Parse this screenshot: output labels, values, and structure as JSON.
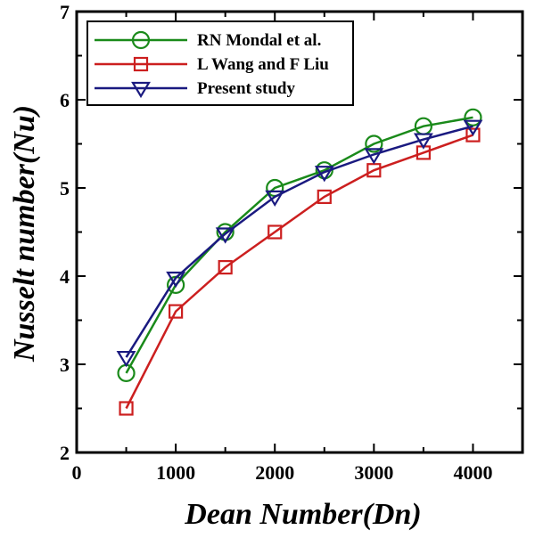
{
  "chart_data": {
    "type": "line",
    "title": "",
    "xlabel": "Dean Number(Dn)",
    "ylabel": "Nusselt number(Nu)",
    "xlim": [
      0,
      4500
    ],
    "ylim": [
      2,
      7
    ],
    "xticks": [
      0,
      1000,
      2000,
      3000,
      4000
    ],
    "yticks": [
      2,
      3,
      4,
      5,
      6,
      7
    ],
    "x": [
      500,
      1000,
      1500,
      2000,
      2500,
      3000,
      3500,
      4000
    ],
    "grid": false,
    "legend_position": "top-left",
    "series": [
      {
        "name": "RN Mondal et al.",
        "marker": "circle",
        "color": "#1a8a1a",
        "values": [
          2.9,
          3.9,
          4.5,
          5.0,
          5.2,
          5.5,
          5.7,
          5.8
        ]
      },
      {
        "name": "L Wang and F Liu",
        "marker": "square",
        "color": "#cc1f1f",
        "values": [
          2.5,
          3.6,
          4.1,
          4.5,
          4.9,
          5.2,
          5.4,
          5.6
        ]
      },
      {
        "name": "Present study",
        "marker": "triangle-down",
        "color": "#1a1a80",
        "values": [
          3.08,
          3.98,
          4.48,
          4.9,
          5.18,
          5.38,
          5.55,
          5.7
        ]
      }
    ]
  }
}
